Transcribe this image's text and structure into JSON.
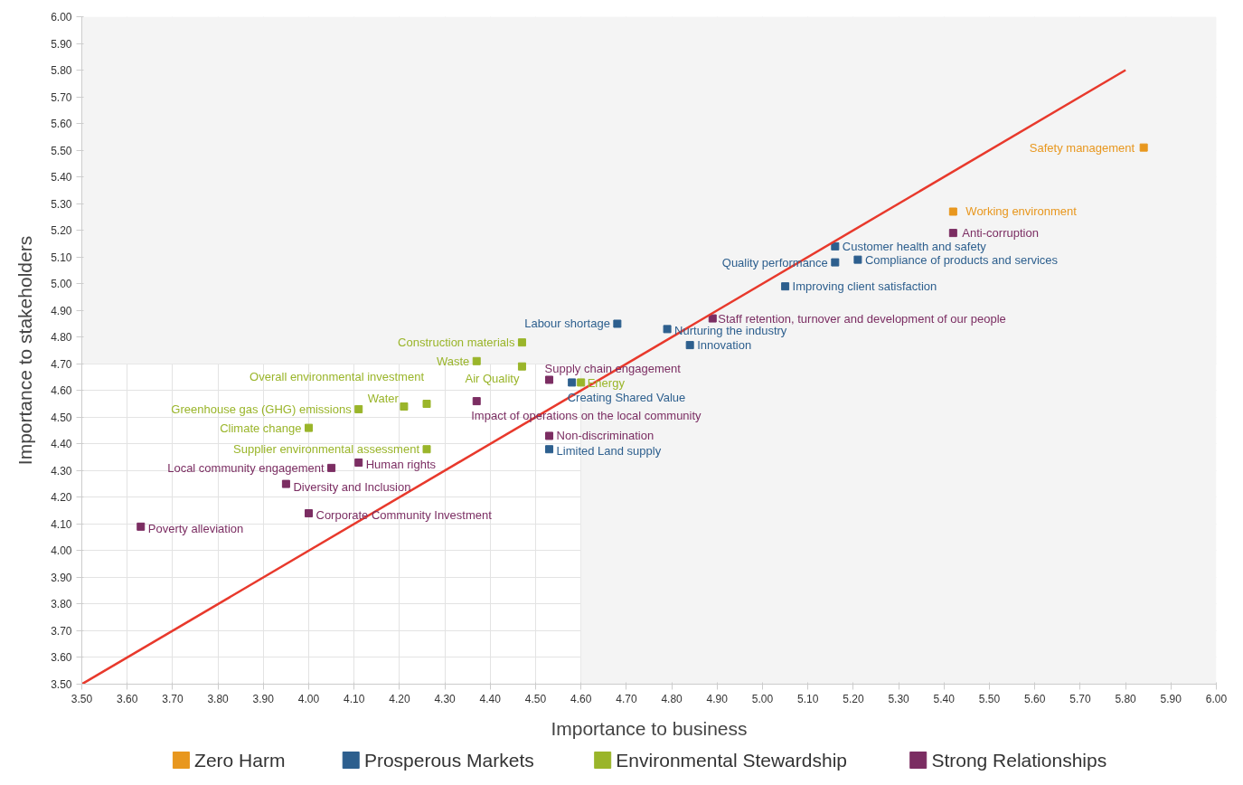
{
  "chart_data": {
    "type": "scatter",
    "xlabel": "Importance to business",
    "ylabel": "Importance to stakeholders",
    "xlim": [
      3.5,
      6.0
    ],
    "ylim": [
      3.5,
      6.0
    ],
    "xticks": [
      {
        "value": 3.5,
        "label": "3.50"
      },
      {
        "value": 3.6,
        "label": "3.60"
      },
      {
        "value": 3.7,
        "label": "3.70"
      },
      {
        "value": 3.8,
        "label": "3.80"
      },
      {
        "value": 3.9,
        "label": "3.90"
      },
      {
        "value": 4.0,
        "label": "4.00"
      },
      {
        "value": 4.1,
        "label": "4.10"
      },
      {
        "value": 4.2,
        "label": "4.20"
      },
      {
        "value": 4.3,
        "label": "4.30"
      },
      {
        "value": 4.4,
        "label": "4.40"
      },
      {
        "value": 4.5,
        "label": "4.50"
      },
      {
        "value": 4.6,
        "label": "4.60"
      },
      {
        "value": 4.7,
        "label": "4.70"
      },
      {
        "value": 4.8,
        "label": "4.80"
      },
      {
        "value": 4.9,
        "label": "4.90"
      },
      {
        "value": 5.0,
        "label": "5.00"
      },
      {
        "value": 5.1,
        "label": "5.10"
      },
      {
        "value": 5.2,
        "label": "5.20"
      },
      {
        "value": 5.3,
        "label": "5.30"
      },
      {
        "value": 5.4,
        "label": "5.40"
      },
      {
        "value": 5.5,
        "label": "5.50"
      },
      {
        "value": 5.6,
        "label": "5.60"
      },
      {
        "value": 5.7,
        "label": "5.70"
      },
      {
        "value": 5.8,
        "label": "5.80"
      },
      {
        "value": 5.9,
        "label": "5.90"
      },
      {
        "value": 6.0,
        "label": "6.00"
      }
    ],
    "yticks": [
      {
        "value": 3.5,
        "label": "3.50"
      },
      {
        "value": 3.6,
        "label": "3.60"
      },
      {
        "value": 3.7,
        "label": "3.70"
      },
      {
        "value": 3.8,
        "label": "3.80"
      },
      {
        "value": 3.9,
        "label": "3.90"
      },
      {
        "value": 4.0,
        "label": "4.00"
      },
      {
        "value": 4.1,
        "label": "4.10"
      },
      {
        "value": 4.2,
        "label": "4.20"
      },
      {
        "value": 4.3,
        "label": "4.30"
      },
      {
        "value": 4.4,
        "label": "4.40"
      },
      {
        "value": 4.5,
        "label": "4.50"
      },
      {
        "value": 4.6,
        "label": "4.60"
      },
      {
        "value": 4.7,
        "label": "4.70"
      },
      {
        "value": 4.8,
        "label": "4.80"
      },
      {
        "value": 4.9,
        "label": "4.90"
      },
      {
        "value": 5.0,
        "label": "5.00"
      },
      {
        "value": 5.1,
        "label": "5.10"
      },
      {
        "value": 5.2,
        "label": "5.20"
      },
      {
        "value": 5.3,
        "label": "5.30"
      },
      {
        "value": 5.4,
        "label": "5.40"
      },
      {
        "value": 5.5,
        "label": "5.50"
      },
      {
        "value": 5.6,
        "label": "5.60"
      },
      {
        "value": 5.7,
        "label": "5.70"
      },
      {
        "value": 5.8,
        "label": "5.80"
      },
      {
        "value": 5.9,
        "label": "5.90"
      },
      {
        "value": 6.0,
        "label": "6.00"
      }
    ],
    "grid": true,
    "legend": "bottom",
    "marker": "square",
    "bands": [
      {
        "axis": "x",
        "from": 4.6,
        "to": 6.0,
        "color": "#f4f4f4"
      },
      {
        "axis": "y",
        "from": 4.7,
        "to": 6.0,
        "color": "#f4f4f4"
      }
    ],
    "series": [
      {
        "name": "Zero Harm",
        "color": "#e8971e",
        "x": [
          5.84,
          5.42
        ],
        "values": [
          5.51,
          5.27
        ]
      },
      {
        "name": "Prosperous Markets",
        "color": "#2d5f8e",
        "x": [
          5.16,
          5.16,
          5.21,
          5.05,
          4.68,
          4.79,
          4.84,
          4.58,
          4.53
        ],
        "values": [
          5.14,
          5.08,
          5.09,
          4.99,
          4.85,
          4.83,
          4.77,
          4.63,
          4.38
        ]
      },
      {
        "name": "Environmental Stewardship",
        "color": "#9ab52a",
        "x": [
          4.47,
          4.37,
          4.47,
          4.6,
          4.26,
          4.21,
          4.11,
          4.0,
          4.26
        ],
        "values": [
          4.78,
          4.71,
          4.69,
          4.63,
          4.55,
          4.54,
          4.53,
          4.46,
          4.38
        ]
      },
      {
        "name": "Strong Relationships",
        "color": "#7b2d62",
        "x": [
          5.42,
          4.89,
          4.53,
          4.37,
          4.53,
          4.05,
          4.11,
          3.95,
          4.0,
          3.63
        ],
        "values": [
          5.19,
          4.87,
          4.64,
          4.56,
          4.43,
          4.31,
          4.33,
          4.25,
          4.14,
          4.09
        ]
      },
      {
        "type": "line",
        "color": "#e8392c",
        "line_style": "solid",
        "marker": "none",
        "x": [
          3.5,
          5.8
        ],
        "values": [
          3.5,
          5.8
        ]
      }
    ],
    "annotations": [
      {
        "text": "Safety management",
        "x": 5.84,
        "y": 5.51
      },
      {
        "text": "Working environment",
        "x": 5.42,
        "y": 5.27
      },
      {
        "text": "Anti-corruption",
        "x": 5.42,
        "y": 5.19
      },
      {
        "text": "Customer health and safety",
        "x": 5.16,
        "y": 5.14
      },
      {
        "text": "Quality performance",
        "x": 5.16,
        "y": 5.08
      },
      {
        "text": "Compliance of products and services",
        "x": 5.21,
        "y": 5.09
      },
      {
        "text": "Improving client satisfaction",
        "x": 5.05,
        "y": 4.99
      },
      {
        "text": "Staff retention, turnover and development of our people",
        "x": 4.89,
        "y": 4.87
      },
      {
        "text": "Labour shortage",
        "x": 4.68,
        "y": 4.85
      },
      {
        "text": "Nurturing the industry",
        "x": 4.79,
        "y": 4.83
      },
      {
        "text": "Innovation",
        "x": 4.84,
        "y": 4.77
      },
      {
        "text": "Construction materials",
        "x": 4.47,
        "y": 4.78
      },
      {
        "text": "Waste",
        "x": 4.37,
        "y": 4.71
      },
      {
        "text": "Air Quality",
        "x": 4.47,
        "y": 4.69
      },
      {
        "text": "Supply chain engagement",
        "x": 4.53,
        "y": 4.64
      },
      {
        "text": "Creating Shared Value",
        "x": 4.58,
        "y": 4.63
      },
      {
        "text": "Energy",
        "x": 4.6,
        "y": 4.63
      },
      {
        "text": "Impact of operations on the local community",
        "x": 4.37,
        "y": 4.56
      },
      {
        "text": "Overall environmental investment",
        "x": 4.26,
        "y": 4.55
      },
      {
        "text": "Water",
        "x": 4.21,
        "y": 4.54
      },
      {
        "text": "Greenhouse gas (GHG) emissions",
        "x": 4.11,
        "y": 4.53
      },
      {
        "text": "Climate change",
        "x": 4.0,
        "y": 4.46
      },
      {
        "text": "Supplier environmental assessment",
        "x": 4.26,
        "y": 4.38
      },
      {
        "text": "Non-discrimination",
        "x": 4.53,
        "y": 4.43
      },
      {
        "text": "Limited Land supply",
        "x": 4.53,
        "y": 4.38
      },
      {
        "text": "Local community engagement",
        "x": 4.05,
        "y": 4.31
      },
      {
        "text": "Human rights",
        "x": 4.11,
        "y": 4.33
      },
      {
        "text": "Diversity and Inclusion",
        "x": 3.95,
        "y": 4.25
      },
      {
        "text": "Corporate Community Investment",
        "x": 4.0,
        "y": 4.14
      },
      {
        "text": "Poverty alleviation",
        "x": 3.63,
        "y": 4.09
      }
    ]
  }
}
